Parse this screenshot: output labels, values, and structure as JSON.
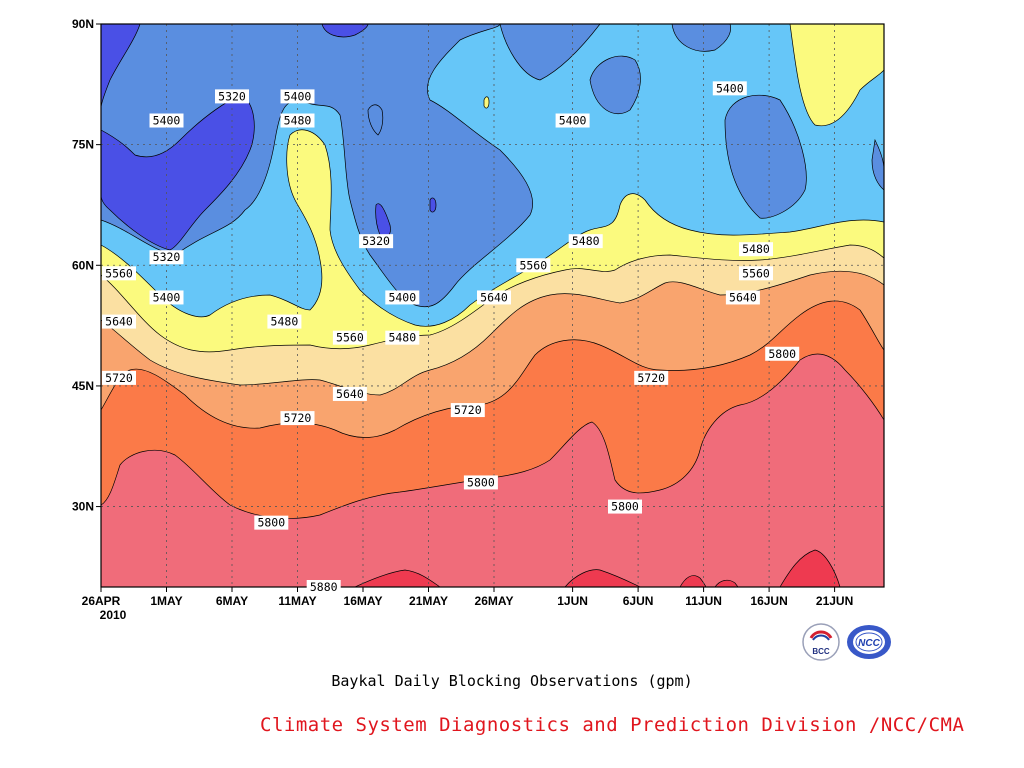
{
  "chart_data": {
    "type": "heatmap",
    "title": "Baykal Daily Blocking Observations (gpm)",
    "y_tick_labels": [
      "90N",
      "75N",
      "60N",
      "45N",
      "30N"
    ],
    "x_tick_labels": [
      "26APR",
      "1MAY",
      "6MAY",
      "11MAY",
      "16MAY",
      "21MAY",
      "26MAY",
      "1JUN",
      "6JUN",
      "11JUN",
      "16JUN",
      "21JUN"
    ],
    "x_year_label": "2010",
    "ylim": [
      20,
      90
    ],
    "contour_levels": [
      5320,
      5400,
      5480,
      5560,
      5640,
      5720,
      5800,
      5880
    ],
    "contour_labels": [
      {
        "text": "5320",
        "date": "6MAY",
        "lat": 81
      },
      {
        "text": "5400",
        "date": "11MAY",
        "lat": 81
      },
      {
        "text": "5400",
        "date": "1MAY",
        "lat": 78
      },
      {
        "text": "5480",
        "date": "11MAY",
        "lat": 78
      },
      {
        "text": "5400",
        "date": "1JUN",
        "lat": 78
      },
      {
        "text": "5400",
        "date": "13JUN",
        "lat": 82
      },
      {
        "text": "5320",
        "date": "17MAY",
        "lat": 63
      },
      {
        "text": "5320",
        "date": "1MAY",
        "lat": 61
      },
      {
        "text": "5480",
        "date": "2JUN",
        "lat": 63
      },
      {
        "text": "5480",
        "date": "15JUN",
        "lat": 62
      },
      {
        "text": "5560",
        "date": "26APR",
        "lat": 59
      },
      {
        "text": "5560",
        "date": "29MAY",
        "lat": 60
      },
      {
        "text": "5560",
        "date": "15JUN",
        "lat": 59
      },
      {
        "text": "5400",
        "date": "1MAY",
        "lat": 56
      },
      {
        "text": "5400",
        "date": "19MAY",
        "lat": 56
      },
      {
        "text": "5640",
        "date": "26APR",
        "lat": 53
      },
      {
        "text": "5480",
        "date": "10MAY",
        "lat": 53
      },
      {
        "text": "5560",
        "date": "15MAY",
        "lat": 51
      },
      {
        "text": "5480",
        "date": "19MAY",
        "lat": 51
      },
      {
        "text": "5640",
        "date": "26MAY",
        "lat": 56
      },
      {
        "text": "5640",
        "date": "14JUN",
        "lat": 56
      },
      {
        "text": "5720",
        "date": "27APR",
        "lat": 46
      },
      {
        "text": "5640",
        "date": "15MAY",
        "lat": 44
      },
      {
        "text": "5720",
        "date": "24MAY",
        "lat": 42
      },
      {
        "text": "5720",
        "date": "7JUN",
        "lat": 46
      },
      {
        "text": "5800",
        "date": "17JUN",
        "lat": 49
      },
      {
        "text": "5720",
        "date": "11MAY",
        "lat": 41
      },
      {
        "text": "5800",
        "date": "25MAY",
        "lat": 33
      },
      {
        "text": "5800",
        "date": "5JUN",
        "lat": 30
      },
      {
        "text": "5800",
        "date": "9MAY",
        "lat": 28
      },
      {
        "text": "5880",
        "date": "13MAY",
        "lat": 20
      }
    ],
    "colors": {
      "lt5320": "#4a50e6",
      "b5320_5400": "#5a8ee0",
      "b5400_5480": "#66c6f8",
      "b5480_5560": "#fbfa7e",
      "b5560_5640": "#fbe0a2",
      "b5640_5720": "#f9a46e",
      "b5720_5800": "#fb7a48",
      "b5800_5880": "#f06c7a",
      "gt5880": "#ee3a50"
    },
    "grid": true
  },
  "caption": {
    "title": "Baykal Daily Blocking Observations (gpm)",
    "credit": "Climate System Diagnostics and Prediction Division /NCC/CMA"
  },
  "logos": {
    "left": "BCC",
    "right": "NCC"
  }
}
